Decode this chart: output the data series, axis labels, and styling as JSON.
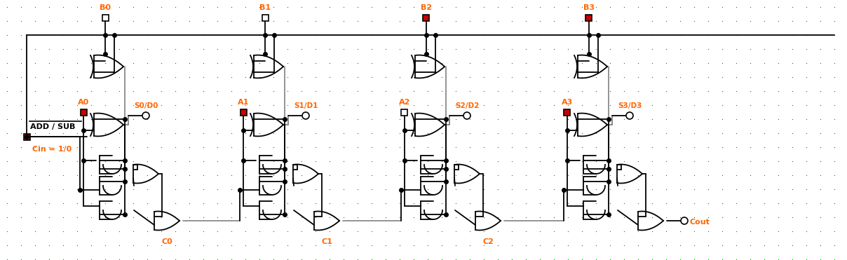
{
  "bg_color": "#ffffff",
  "dot_color": "#008800",
  "lc": "#000000",
  "orange": "#ff6600",
  "red": "#cc0000",
  "figsize": [
    12.08,
    3.71
  ],
  "dpi": 100,
  "B_labels": [
    "B0",
    "B1",
    "B2",
    "B3"
  ],
  "A_labels": [
    "A0",
    "A1",
    "A2",
    "A3"
  ],
  "S_labels": [
    "S0/D0",
    "S1/D1",
    "S2/D2",
    "S3/D3"
  ],
  "C_labels": [
    "C0",
    "C1",
    "C2"
  ],
  "B_red": [
    false,
    false,
    true,
    true
  ],
  "A_red": [
    true,
    true,
    false,
    true
  ],
  "ADD_SUB": "ADD / SUB",
  "Cin": "Cin = 1/0"
}
